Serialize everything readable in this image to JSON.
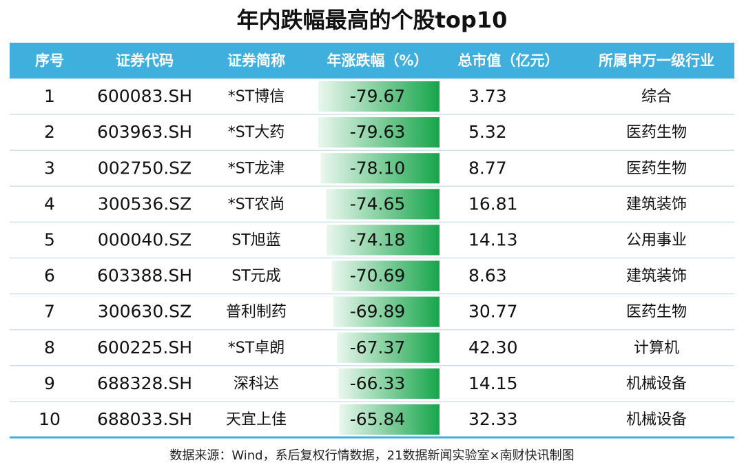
{
  "title": "年内跌幅最高的个股top10",
  "table": {
    "header": [
      "序号",
      "证券代码",
      "证券简称",
      "年涨跌幅（%）",
      "总市值（亿元）",
      "所属申万一级行业"
    ],
    "rows": [
      [
        "1",
        "600083.SH",
        "*ST博信",
        "-79.67",
        "3.73",
        "综合"
      ],
      [
        "2",
        "603963.SH",
        "*ST大药",
        "-79.63",
        "5.32",
        "医药生物"
      ],
      [
        "3",
        "002750.SZ",
        "*ST龙津",
        "-78.10",
        "8.77",
        "医药生物"
      ],
      [
        "4",
        "300536.SZ",
        "*ST农尚",
        "-74.65",
        "16.81",
        "建筑装饰"
      ],
      [
        "5",
        "000040.SZ",
        "ST旭蓝",
        "-74.18",
        "14.13",
        "公用事业"
      ],
      [
        "6",
        "603388.SH",
        "ST元成",
        "-70.69",
        "8.63",
        "建筑装饰"
      ],
      [
        "7",
        "300630.SZ",
        "普利制药",
        "-69.89",
        "30.77",
        "医药生物"
      ],
      [
        "8",
        "600225.SH",
        "*ST卓朗",
        "-67.37",
        "42.30",
        "计算机"
      ],
      [
        "9",
        "688328.SH",
        "深科达",
        "-66.33",
        "14.15",
        "机械设备"
      ],
      [
        "10",
        "688033.SH",
        "天宜上佳",
        "-65.84",
        "32.33",
        "机械设备"
      ]
    ]
  },
  "footer": "数据来源：Wind，系后复权行情数据，21数据新闻实验室×南财快讯制图"
}
